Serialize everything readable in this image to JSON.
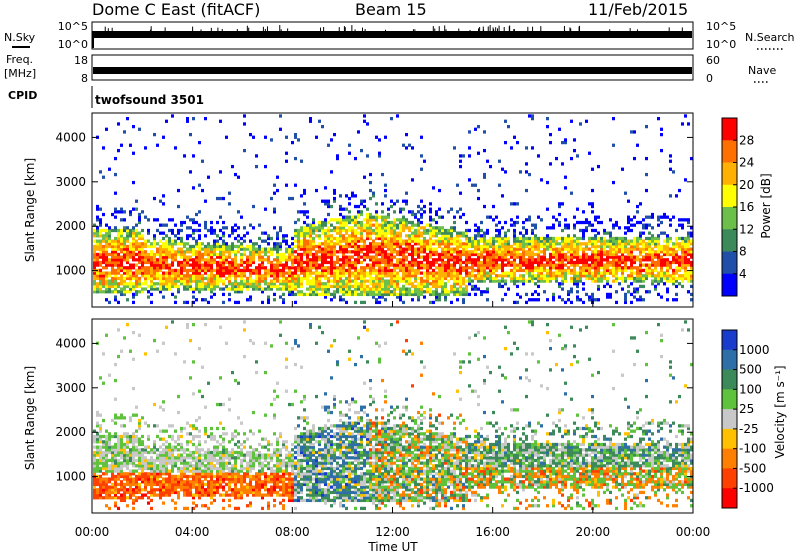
{
  "header": {
    "station": "Dome C East (fitACF)",
    "beam": "Beam 15",
    "date": "11/Feb/2015"
  },
  "strip_labels": {
    "nsky": "N.Sky",
    "nsearch": "N.Search",
    "freq_line1": "Freq.",
    "freq_line2": "[MHz]",
    "nave": "Nave",
    "cpid": "CPID",
    "cpid_value": "twofsound 3501"
  },
  "noise_strip": {
    "left_ticks": [
      "10^5",
      "10^0"
    ],
    "right_ticks": [
      "10^5",
      "10^0"
    ]
  },
  "freq_strip": {
    "left_ticks": [
      "18",
      "8"
    ],
    "right_ticks": [
      "60",
      "0"
    ]
  },
  "chart_data": [
    {
      "type": "heatmap",
      "name": "power",
      "ylabel": "Slant Range [km]",
      "y_ticks": [
        "1000",
        "2000",
        "3000",
        "4000"
      ],
      "ylim": [
        180,
        4550
      ],
      "colorbar_label": "Power [dB]",
      "colorbar_ticks": [
        "4",
        "8",
        "12",
        "16",
        "20",
        "24",
        "28"
      ],
      "colors": [
        "#0000ff",
        "#1f4fa8",
        "#3c8a5a",
        "#6cc04a",
        "#ffff00",
        "#ffb000",
        "#ff7000",
        "#ff0000"
      ]
    },
    {
      "type": "heatmap",
      "name": "velocity",
      "ylabel": "Slant Range [km]",
      "y_ticks": [
        "1000",
        "2000",
        "3000",
        "4000"
      ],
      "ylim": [
        180,
        4550
      ],
      "colorbar_label": "Velocity [m s⁻¹]",
      "colorbar_ticks": [
        "1000",
        "500",
        "100",
        "25",
        "-25",
        "-100",
        "-500",
        "-1000"
      ],
      "colors": [
        "#1a3ccc",
        "#2f6fa8",
        "#3c8a5a",
        "#5ec23c",
        "#c8c8c8",
        "#ffc000",
        "#ff8000",
        "#ff4000",
        "#ff0000"
      ]
    }
  ],
  "x_axis": {
    "label": "Time UT",
    "ticks": [
      "00:00",
      "04:00",
      "08:00",
      "12:00",
      "16:00",
      "20:00",
      "00:00"
    ]
  }
}
